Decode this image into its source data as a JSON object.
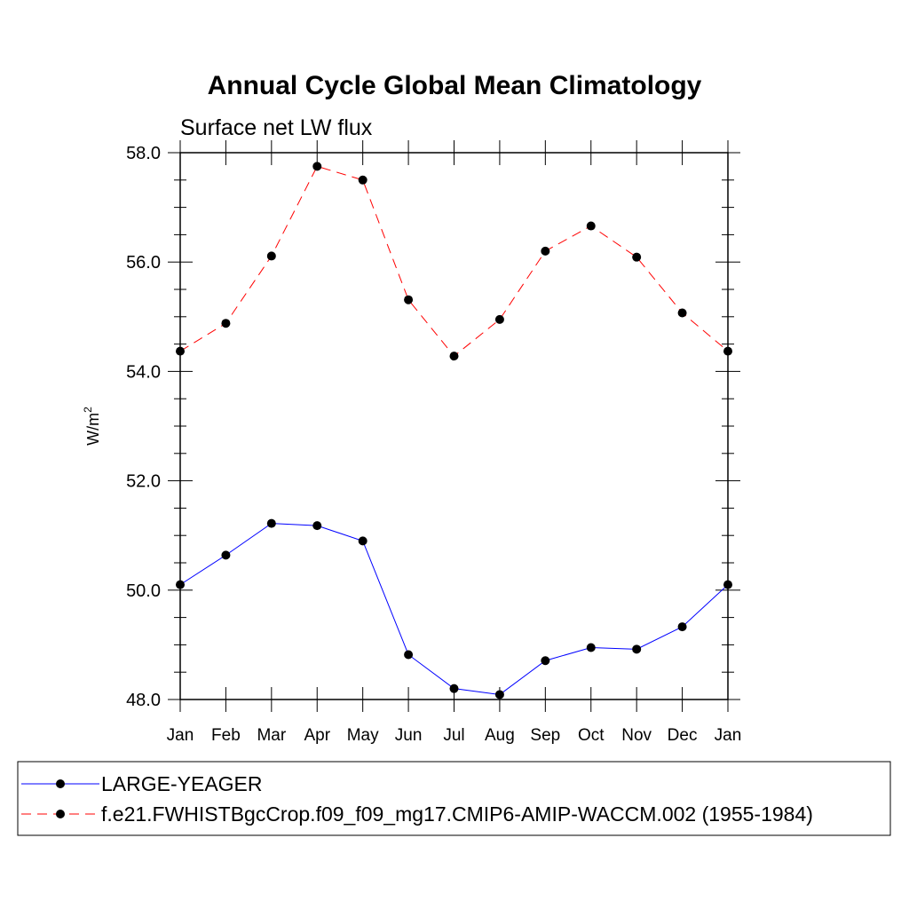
{
  "chart_data": {
    "type": "line",
    "title": "Annual Cycle Global Mean Climatology",
    "subtitle": "Surface net LW flux",
    "ylabel": "W/m",
    "ylabel_sup": "2",
    "xlabel": "",
    "categories": [
      "Jan",
      "Feb",
      "Mar",
      "Apr",
      "May",
      "Jun",
      "Jul",
      "Aug",
      "Sep",
      "Oct",
      "Nov",
      "Dec",
      "Jan"
    ],
    "ylim": [
      48.0,
      58.0
    ],
    "yticks": [
      "48.0",
      "50.0",
      "52.0",
      "54.0",
      "56.0",
      "58.0"
    ],
    "grid": false,
    "legend_position": "bottom",
    "series": [
      {
        "name": "LARGE-YEAGER",
        "color": "#0000ff",
        "dash": "solid",
        "values": [
          50.1,
          50.64,
          51.22,
          51.18,
          50.9,
          48.82,
          48.2,
          48.09,
          48.71,
          48.95,
          48.92,
          49.33,
          50.1
        ]
      },
      {
        "name": "f.e21.FWHISTBgcCrop.f09_f09_mg17.CMIP6-AMIP-WACCM.002 (1955-1984)",
        "color": "#ff0000",
        "dash": "dashed",
        "values": [
          54.37,
          54.88,
          56.11,
          57.75,
          57.5,
          55.31,
          54.28,
          54.95,
          56.2,
          56.66,
          56.09,
          55.07,
          54.37
        ]
      }
    ]
  }
}
